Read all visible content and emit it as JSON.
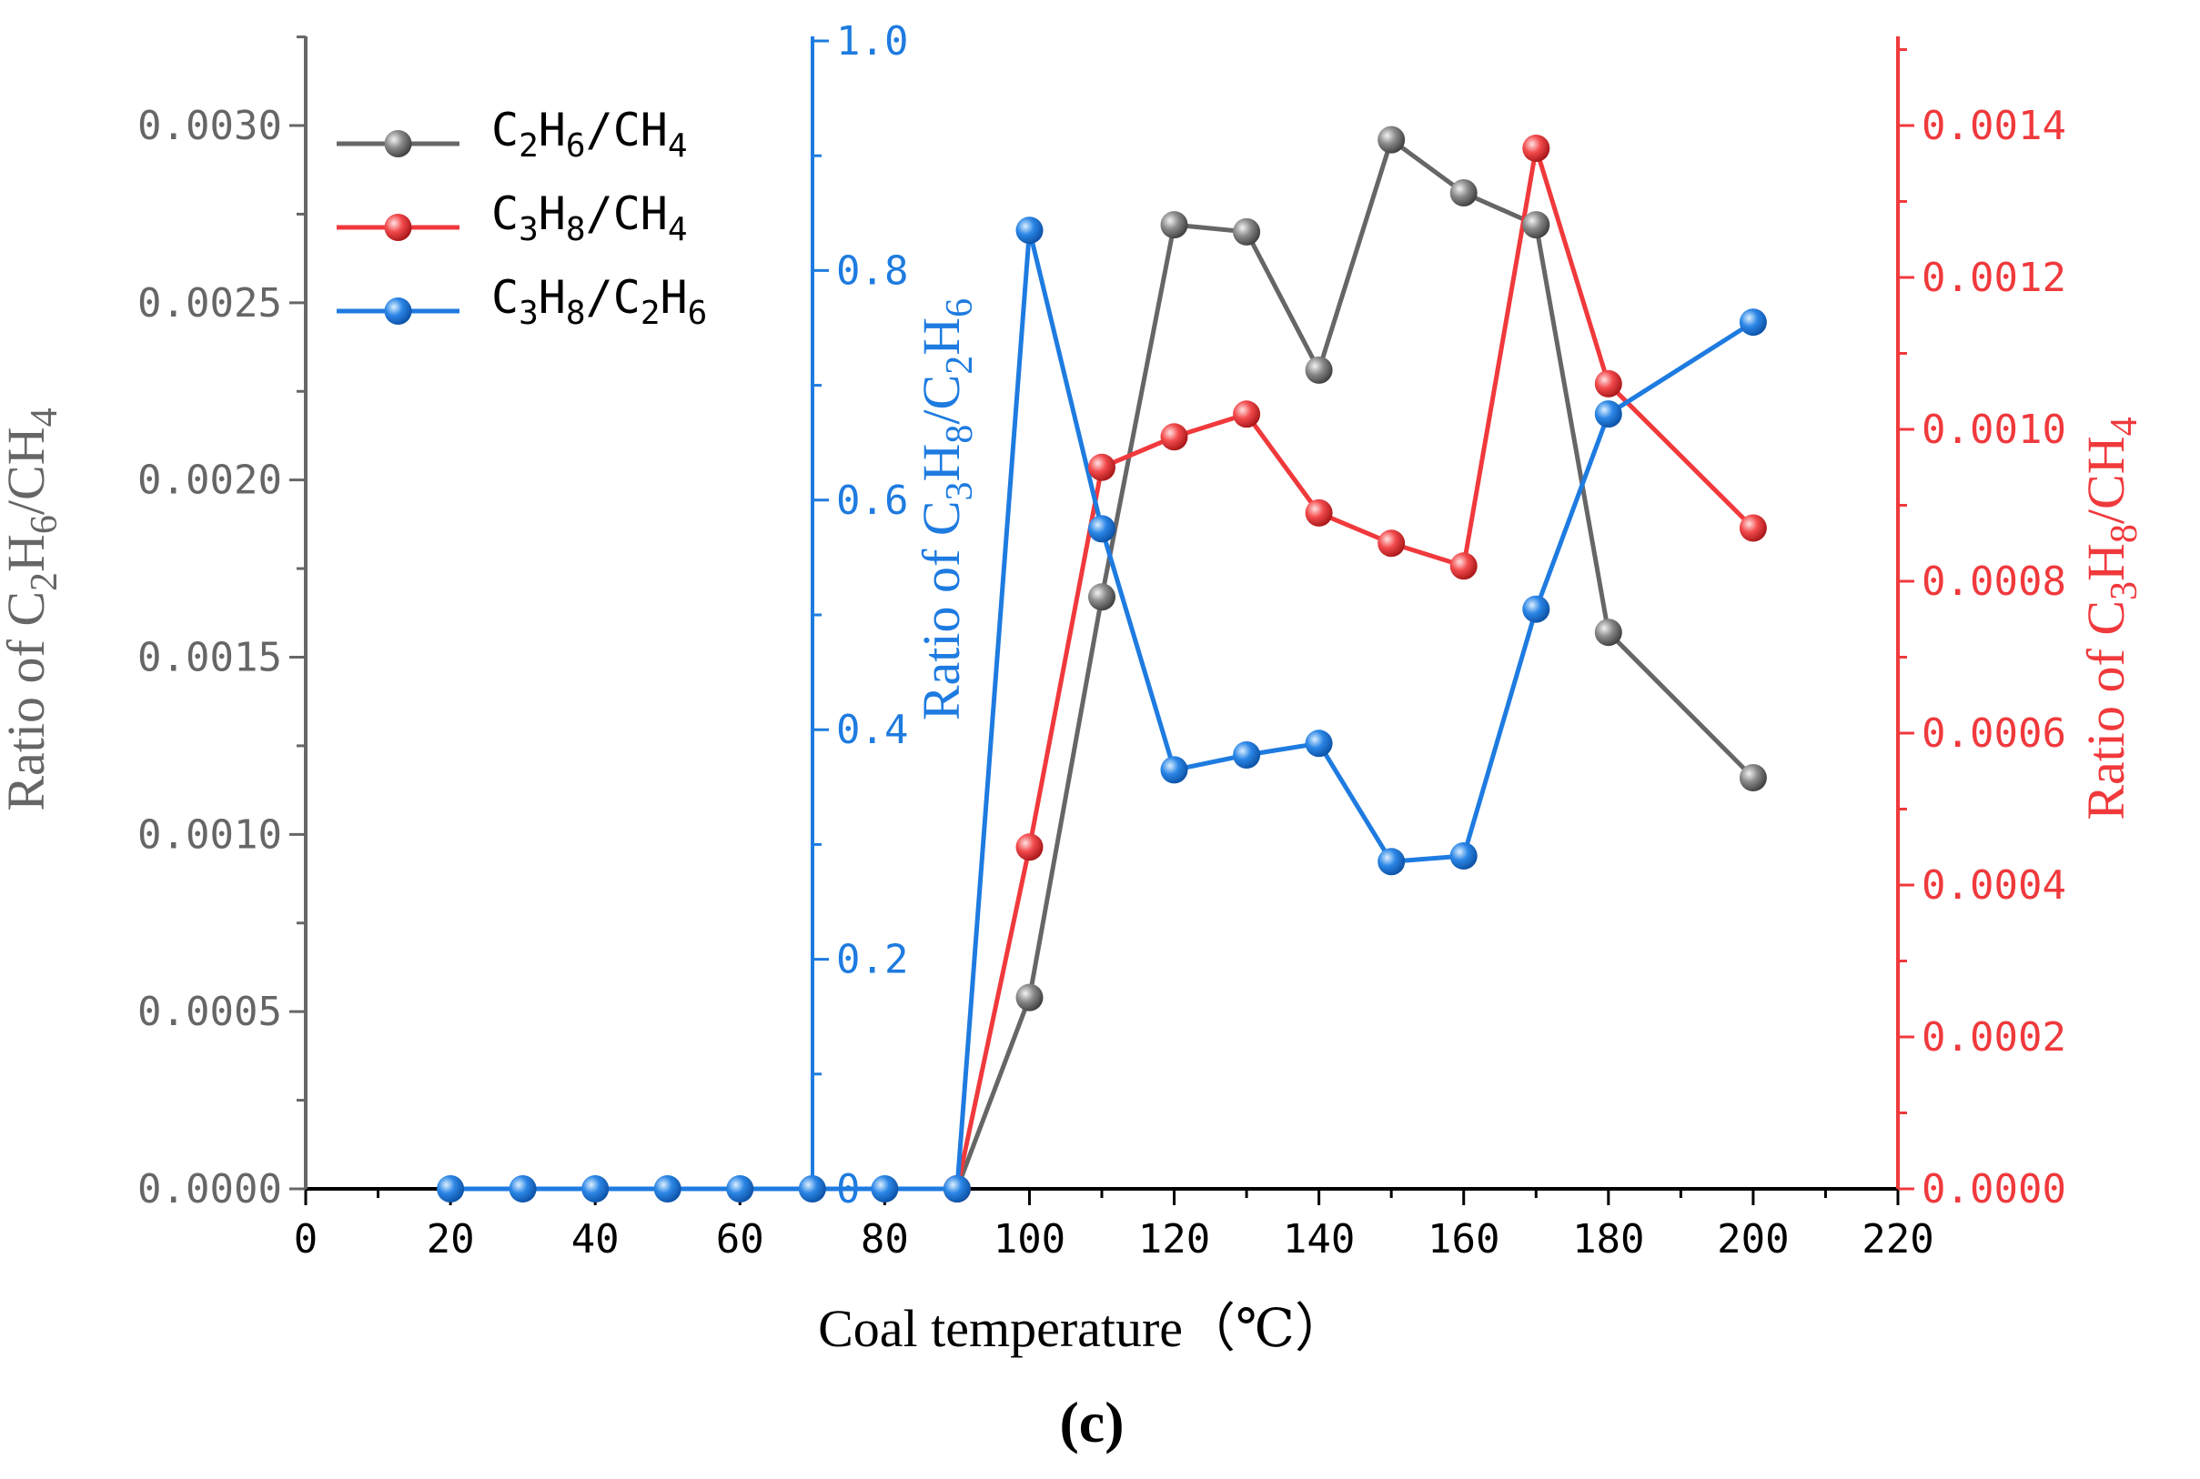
{
  "chart_data": {
    "type": "line",
    "panel_label": "(c)",
    "xlabel": "Coal temperature（℃）",
    "xlim": [
      0,
      220
    ],
    "x_ticks": [
      "0",
      "20",
      "40",
      "60",
      "80",
      "100",
      "120",
      "140",
      "160",
      "180",
      "200",
      "220"
    ],
    "axes": {
      "left": {
        "label": {
          "pre": "Ratio of C",
          "s1": "2",
          "mid": "H",
          "s2": "6",
          "post": "/CH",
          "s3": "4"
        },
        "ylim": [
          0,
          0.00325
        ],
        "ticks": [
          "0.0000",
          "0.0005",
          "0.0010",
          "0.0015",
          "0.0020",
          "0.0025",
          "0.0030"
        ],
        "color": "#666666"
      },
      "middle": {
        "label": {
          "pre": "Ratio of C",
          "s1": "3",
          "mid": "H",
          "s2": "8",
          "post": "/C",
          "s3": "2",
          "mid2": "H",
          "s4": "6"
        },
        "ylim": [
          0,
          1.0
        ],
        "ticks": [
          "0",
          "0.2",
          "0.4",
          "0.6",
          "0.8",
          "1.0"
        ],
        "color": "#1E7BE0"
      },
      "right": {
        "label": {
          "pre": "Ratio of C",
          "s1": "3",
          "mid": "H",
          "s2": "8",
          "post": "/CH",
          "s3": "4"
        },
        "ylim": [
          0,
          0.0015
        ],
        "ticks": [
          "0.0000",
          "0.0002",
          "0.0004",
          "0.0006",
          "0.0008",
          "0.0010",
          "0.0012",
          "0.0014"
        ],
        "color": "#F0393C"
      }
    },
    "series": [
      {
        "name": "C2H6/CH4",
        "legend": {
          "pre": "C",
          "s1": "2",
          "mid": "H",
          "s2": "6",
          "post": "/CH",
          "s3": "4"
        },
        "axis": "left",
        "color": "#666666",
        "x": [
          90,
          100,
          110,
          120,
          130,
          140,
          150,
          160,
          170,
          180,
          200
        ],
        "y": [
          0.0,
          0.00054,
          0.00167,
          0.00272,
          0.0027,
          0.00231,
          0.00296,
          0.00281,
          0.00272,
          0.00157,
          0.00116
        ]
      },
      {
        "name": "C3H8/CH4",
        "legend": {
          "pre": "C",
          "s1": "3",
          "mid": "H",
          "s2": "8",
          "post": "/CH",
          "s3": "4"
        },
        "axis": "right",
        "color": "#F0393C",
        "x": [
          90,
          100,
          110,
          120,
          130,
          140,
          150,
          160,
          170,
          180,
          200
        ],
        "y": [
          0.0,
          0.00045,
          0.00095,
          0.00099,
          0.00102,
          0.00089,
          0.00085,
          0.00082,
          0.00137,
          0.00106,
          0.00087
        ]
      },
      {
        "name": "C3H8/C2H6",
        "legend": {
          "pre": "C",
          "s1": "3",
          "mid": "H",
          "s2": "8",
          "post": "/C",
          "s3": "2",
          "mid2": "H",
          "s4": "6"
        },
        "axis": "middle",
        "color": "#1E7BE0",
        "x": [
          20,
          30,
          40,
          50,
          60,
          70,
          80,
          90,
          100,
          110,
          120,
          130,
          140,
          150,
          160,
          170,
          180,
          200
        ],
        "y": [
          0,
          0,
          0,
          0,
          0,
          0,
          0,
          0,
          0.835,
          0.575,
          0.365,
          0.378,
          0.388,
          0.285,
          0.29,
          0.505,
          0.675,
          0.755
        ]
      }
    ],
    "legend_position": "top-left"
  }
}
